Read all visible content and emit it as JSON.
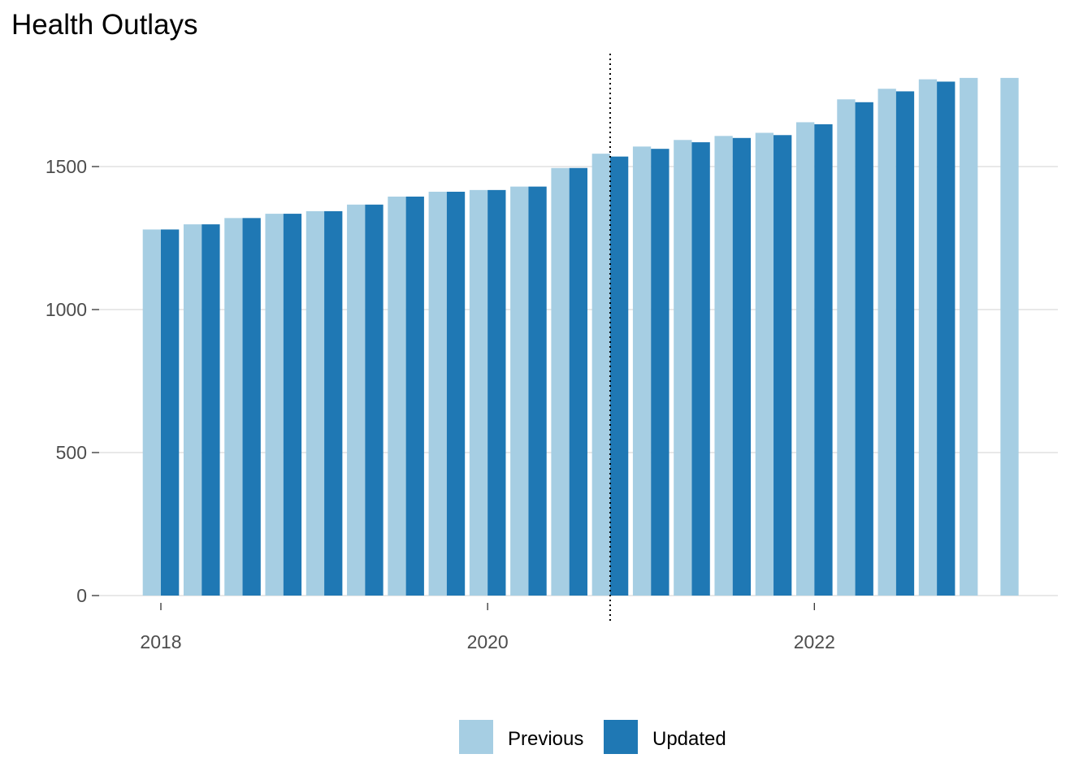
{
  "chart_data": {
    "type": "bar",
    "title": "Health Outlays",
    "xlabel": "",
    "ylabel": "",
    "ylim": [
      0,
      1850
    ],
    "y_ticks": [
      0,
      500,
      1000,
      1500
    ],
    "y_tick_labels": [
      "0",
      "500",
      "1000",
      "1500"
    ],
    "x_ticks": [
      2018,
      2020,
      2022
    ],
    "x_tick_labels": [
      "2018",
      "2020",
      "2022"
    ],
    "xlim": [
      2017.75,
      2023.5
    ],
    "grid": "horizontal",
    "legend_position": "bottom",
    "vline": {
      "x": 2020.75,
      "style": "dotted"
    },
    "x": [
      2018.0,
      2018.25,
      2018.5,
      2018.75,
      2019.0,
      2019.25,
      2019.5,
      2019.75,
      2020.0,
      2020.25,
      2020.5,
      2020.75,
      2021.0,
      2021.25,
      2021.5,
      2021.75,
      2022.0,
      2022.25,
      2022.5,
      2022.75,
      2023.0,
      2023.25
    ],
    "series": [
      {
        "name": "Previous",
        "color": "#a6cee3",
        "values": [
          1280,
          1298,
          1320,
          1335,
          1344,
          1367,
          1395,
          1412,
          1418,
          1430,
          1495,
          1545,
          1570,
          1593,
          1607,
          1618,
          1655,
          1735,
          1772,
          1805,
          1810,
          1810
        ]
      },
      {
        "name": "Updated",
        "color": "#1f78b4",
        "values": [
          1280,
          1298,
          1320,
          1335,
          1344,
          1367,
          1395,
          1412,
          1418,
          1430,
          1495,
          1535,
          1562,
          1585,
          1600,
          1610,
          1648,
          1725,
          1763,
          1797,
          null,
          null
        ]
      }
    ]
  }
}
